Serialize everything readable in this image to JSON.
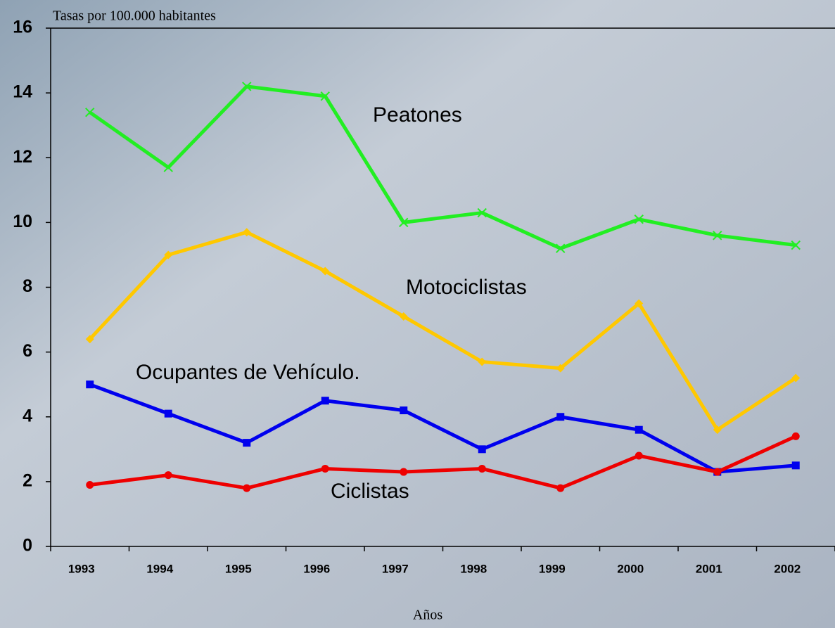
{
  "chart_data": {
    "type": "line",
    "ylabel": "Tasas por 100.000 habitantes",
    "xlabel": "Años",
    "categories": [
      "1993",
      "1994",
      "1995",
      "1996",
      "1997",
      "1998",
      "1999",
      "2000",
      "2001",
      "2002"
    ],
    "series": [
      {
        "name": "Peatones",
        "color": "#22ee22",
        "marker": "x",
        "values": [
          13.4,
          11.7,
          14.2,
          13.9,
          10.0,
          10.3,
          9.2,
          10.1,
          9.6,
          9.3
        ]
      },
      {
        "name": "Motociclistas",
        "color": "#ffc800",
        "marker": "diamond",
        "values": [
          6.4,
          9.0,
          9.7,
          8.5,
          7.1,
          5.7,
          5.5,
          7.5,
          3.6,
          5.2
        ]
      },
      {
        "name": "Ocupantes de Vehículo.",
        "color": "#0000ee",
        "marker": "square",
        "values": [
          5.0,
          4.1,
          3.2,
          4.5,
          4.2,
          3.0,
          4.0,
          3.6,
          2.3,
          2.5
        ]
      },
      {
        "name": "Ciclistas",
        "color": "#ee0000",
        "marker": "circle",
        "values": [
          1.9,
          2.2,
          1.8,
          2.4,
          2.3,
          2.4,
          1.8,
          2.8,
          2.3,
          3.4
        ]
      }
    ],
    "ylim": [
      0,
      16
    ],
    "yticks": [
      0,
      2,
      4,
      6,
      8,
      10,
      12,
      14,
      16
    ]
  }
}
